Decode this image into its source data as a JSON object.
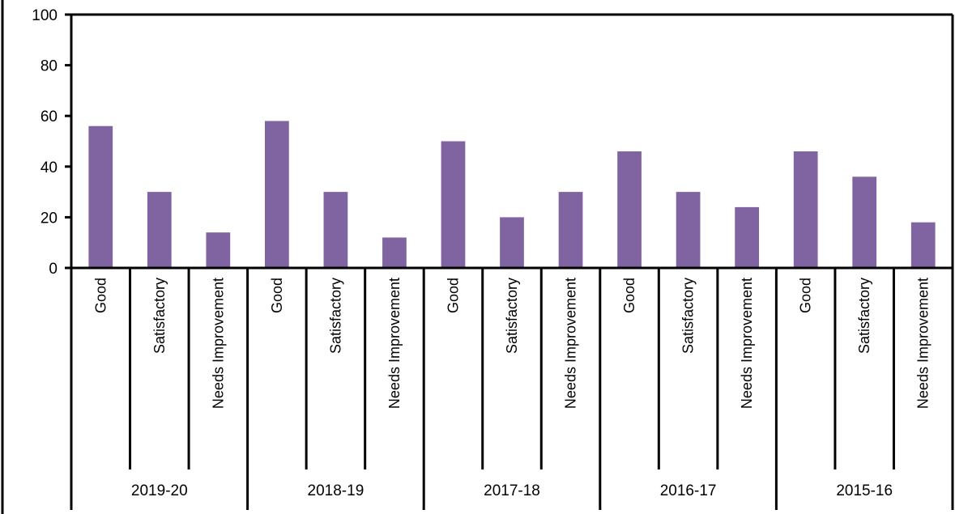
{
  "chart_data": {
    "type": "bar",
    "title": "",
    "xlabel": "",
    "ylabel": "",
    "ylim": [
      0,
      100
    ],
    "yticks": [
      0,
      20,
      40,
      60,
      80,
      100
    ],
    "grid": false,
    "bar_color": "#8064a2",
    "groups": [
      {
        "label": "2019-20",
        "categories": [
          "Good",
          "Satisfactory",
          "Needs Improvement"
        ],
        "values": [
          56,
          30,
          14
        ]
      },
      {
        "label": "2018-19",
        "categories": [
          "Good",
          "Satisfactory",
          "Needs Improvement"
        ],
        "values": [
          58,
          30,
          12
        ]
      },
      {
        "label": "2017-18",
        "categories": [
          "Good",
          "Satisfactory",
          "Needs Improvement"
        ],
        "values": [
          50,
          20,
          30
        ]
      },
      {
        "label": "2016-17",
        "categories": [
          "Good",
          "Satisfactory",
          "Needs Improvement"
        ],
        "values": [
          46,
          30,
          24
        ]
      },
      {
        "label": "2015-16",
        "categories": [
          "Good",
          "Satisfactory",
          "Needs Improvement"
        ],
        "values": [
          46,
          36,
          18
        ]
      }
    ]
  }
}
